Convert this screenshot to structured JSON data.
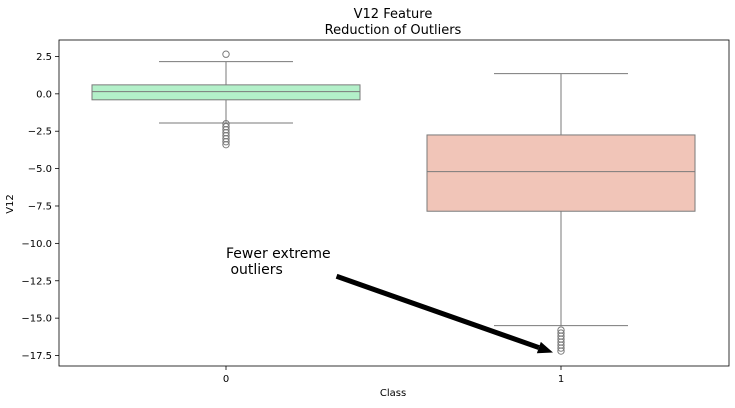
{
  "chart_data": {
    "type": "box",
    "title": "V12 Feature\nReduction of Outliers",
    "xlabel": "Class",
    "ylabel": "V12",
    "ylim": [
      -18.2,
      3.6
    ],
    "yticks": [
      2.5,
      0.0,
      -2.5,
      -5.0,
      -7.5,
      -10.0,
      -12.5,
      -15.0,
      -17.5
    ],
    "ytick_labels": [
      "2.5",
      "0.0",
      "−2.5",
      "−5.0",
      "−7.5",
      "−10.0",
      "−12.5",
      "−15.0",
      "−17.5"
    ],
    "categories": [
      "0",
      "1"
    ],
    "boxes": [
      {
        "category": "0",
        "color": "#b3f0c9",
        "q1": -0.4,
        "median": 0.15,
        "q3": 0.6,
        "whisker_low": -1.95,
        "whisker_high": 2.15,
        "outliers": [
          2.65,
          -2.0,
          -2.2,
          -2.4,
          -2.6,
          -2.8,
          -3.0,
          -3.2,
          -3.4
        ]
      },
      {
        "category": "1",
        "color": "#f1c5b8",
        "q1": -7.85,
        "median": -5.2,
        "q3": -2.75,
        "whisker_low": -15.5,
        "whisker_high": 1.35,
        "outliers": [
          -15.8,
          -16.0,
          -16.2,
          -16.4,
          -16.6,
          -16.8,
          -17.0,
          -17.2
        ]
      }
    ],
    "annotation": {
      "text": "Fewer extreme\n outliers",
      "xy": [
        1.0,
        -17.3
      ],
      "xytext": [
        0.33,
        -12.2
      ]
    },
    "grid": false
  }
}
